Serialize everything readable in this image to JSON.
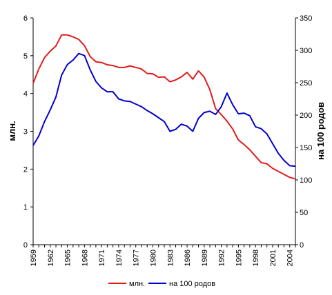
{
  "chart_data": {
    "type": "line",
    "x": [
      1959,
      1960,
      1961,
      1962,
      1963,
      1964,
      1965,
      1966,
      1967,
      1968,
      1969,
      1970,
      1971,
      1972,
      1973,
      1974,
      1975,
      1976,
      1977,
      1978,
      1979,
      1980,
      1981,
      1982,
      1983,
      1984,
      1985,
      1986,
      1987,
      1988,
      1989,
      1990,
      1991,
      1992,
      1993,
      1994,
      1995,
      1996,
      1997,
      1998,
      1999,
      2000,
      2001,
      2002,
      2003,
      2004,
      2005
    ],
    "x_ticks": [
      "1959",
      "1962",
      "1965",
      "1968",
      "1971",
      "1974",
      "1977",
      "1980",
      "1983",
      "1986",
      "1989",
      "1992",
      "1995",
      "1998",
      "2001",
      "2004"
    ],
    "ylabel": "млн.",
    "ylim": [
      0,
      6
    ],
    "y_ticks": [
      "0",
      "1",
      "2",
      "3",
      "4",
      "5",
      "6"
    ],
    "y2label": "на 100 родов",
    "y2lim": [
      0,
      350
    ],
    "y2_ticks": [
      "0",
      "50",
      "100",
      "150",
      "200",
      "250",
      "300",
      "350"
    ],
    "legend_position": "bottom",
    "series": [
      {
        "name": "млн.",
        "axis": "left",
        "color": "#e31a1c",
        "values": [
          4.27,
          4.65,
          4.95,
          5.12,
          5.26,
          5.55,
          5.55,
          5.5,
          5.43,
          5.27,
          4.98,
          4.84,
          4.82,
          4.76,
          4.74,
          4.69,
          4.69,
          4.73,
          4.69,
          4.65,
          4.53,
          4.52,
          4.43,
          4.44,
          4.31,
          4.36,
          4.44,
          4.56,
          4.38,
          4.6,
          4.43,
          4.1,
          3.6,
          3.44,
          3.27,
          3.06,
          2.77,
          2.65,
          2.51,
          2.34,
          2.17,
          2.14,
          2.02,
          1.94,
          1.86,
          1.78,
          1.74
        ]
      },
      {
        "name": "на 100 родов",
        "axis": "right",
        "color": "#0000cc",
        "values": [
          153,
          168,
          190,
          208,
          228,
          262,
          278,
          285,
          295,
          292,
          270,
          252,
          242,
          236,
          236,
          225,
          222,
          221,
          217,
          213,
          207,
          202,
          196,
          190,
          175,
          178,
          186,
          183,
          175,
          195,
          204,
          206,
          201,
          213,
          234,
          216,
          202,
          203,
          199,
          182,
          179,
          171,
          156,
          141,
          130,
          122,
          121
        ]
      }
    ]
  }
}
